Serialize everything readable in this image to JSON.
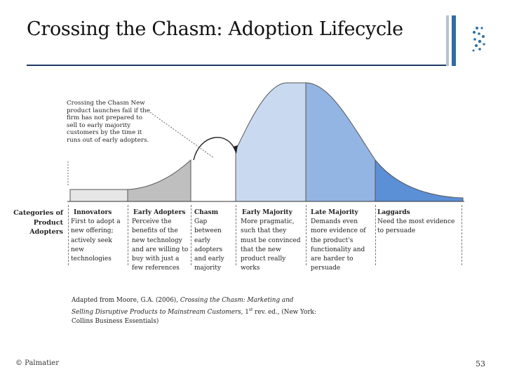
{
  "title": "Crossing the Chasm: Adoption Lifecycle",
  "callout": "Crossing the Chasm New product launches fail if the firm has not prepared to sell to early majority customers by the time it runs out of early adopters.",
  "row_label": "Categories of Product Adopters",
  "segments": [
    {
      "name": "Innovators",
      "desc": "First to adopt a new offering; actively seek new technologies"
    },
    {
      "name": "Early Adopters",
      "desc": "Perceive the benefits of the new technology and are willing to buy with just a few references"
    },
    {
      "name": "Chasm",
      "desc": "Gap between early adopters and early majority"
    },
    {
      "name": "Early Majority",
      "desc": "More pragmatic, such that they must be convinced that the new product really works"
    },
    {
      "name": "Late Majority",
      "desc": "Demands even more evidence of the product's functionality and are harder to persuade"
    },
    {
      "name": "Laggards",
      "desc": "Need the most evidence to persuade"
    }
  ],
  "citation": {
    "prefix": "Adapted from Moore, G.A. (2006), ",
    "book": "Crossing the Chasm: Marketing and Selling Disruptive Products to Mainstream Customers",
    "edition_pre": ", 1",
    "edition_sup": "st",
    "suffix": " rev. ed., (New York: Collins Business Essentials)"
  },
  "footer": {
    "copyright": "© Palmatier",
    "page": "53"
  },
  "colors": {
    "innovators": "#e6e6e6",
    "early_adopters": "#bfbfbf",
    "early_majority": "#c9d9ef",
    "late_majority": "#93b5e3",
    "laggards": "#5b8fd6",
    "rule": "#1f3864"
  }
}
